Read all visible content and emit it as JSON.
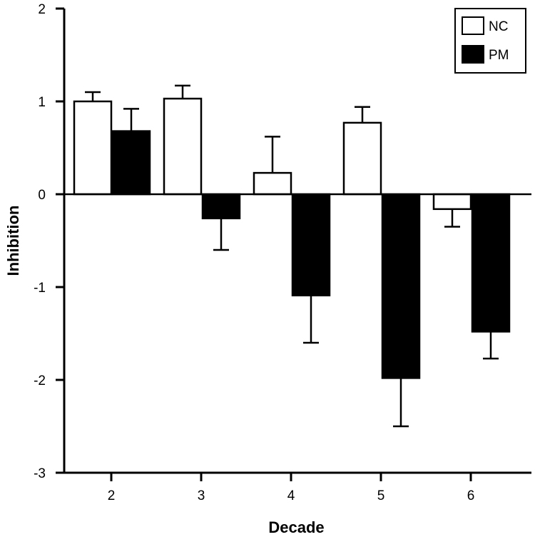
{
  "chart_data": {
    "type": "bar",
    "title": "",
    "xlabel": "Decade",
    "ylabel": "Inhibition",
    "categories": [
      "2",
      "3",
      "4",
      "5",
      "6"
    ],
    "ylim": [
      -3,
      2
    ],
    "yticks": [
      -3,
      -2,
      -1,
      0,
      1,
      2
    ],
    "grid": false,
    "legend_position": "top-right",
    "series": [
      {
        "name": "NC",
        "fill": "#ffffff",
        "stroke": "#000000",
        "values": [
          1.0,
          1.03,
          0.23,
          0.77,
          -0.16
        ],
        "errors": [
          0.1,
          0.14,
          0.39,
          0.17,
          0.19
        ]
      },
      {
        "name": "PM",
        "fill": "#000000",
        "stroke": "#000000",
        "values": [
          0.68,
          -0.26,
          -1.09,
          -1.98,
          -1.48
        ],
        "errors": [
          0.24,
          0.34,
          0.51,
          0.52,
          0.29
        ]
      }
    ]
  }
}
